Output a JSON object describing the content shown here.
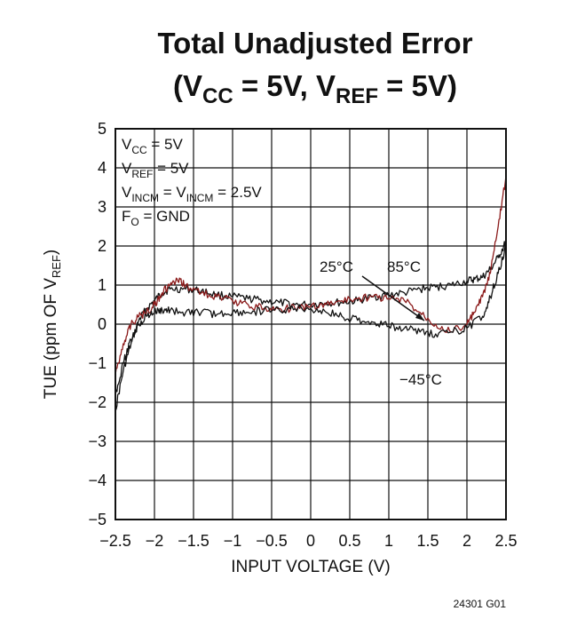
{
  "chart_data": {
    "type": "line",
    "title": "Total Unadjusted Error",
    "subtitle": {
      "p1": "(V",
      "s1": "CC",
      "p2": " = 5V, V",
      "s2": "REF",
      "p3": " = 5V)"
    },
    "xlabel": "INPUT VOLTAGE (V)",
    "ylabel": {
      "main": "TUE (ppm OF V",
      "sub": "REF",
      "end": ")"
    },
    "xlim": [
      -2.5,
      2.5
    ],
    "ylim": [
      -5,
      5
    ],
    "x_ticks": [
      "−2.5",
      "−2",
      "−1.5",
      "−1",
      "−0.5",
      "0",
      "0.5",
      "1",
      "1.5",
      "2",
      "2.5"
    ],
    "y_ticks": [
      "5",
      "4",
      "3",
      "2",
      "1",
      "0",
      "−1",
      "−2",
      "−3",
      "−4",
      "−5"
    ],
    "grid": true,
    "conditions": [
      {
        "a": "V",
        "b": "CC",
        "c": " = 5V"
      },
      {
        "a": "V",
        "b": "REF",
        "c": " = 5V"
      },
      {
        "a": "V",
        "b": "INCM",
        "c": " = V",
        "d": "INCM",
        "e": " = 2.5V"
      },
      {
        "a": "F",
        "b": "O",
        "c": " = GND"
      }
    ],
    "annotations": {
      "t25": "25°C",
      "t85": "85°C",
      "tm45": "−45°C"
    },
    "series": [
      {
        "name": "25°C",
        "color": "#111111",
        "x": [
          -2.5,
          -2.4,
          -2.3,
          -2.2,
          -2.1,
          -2.0,
          -1.9,
          -1.8,
          -1.6,
          -1.4,
          -1.2,
          -1.0,
          -0.8,
          -0.6,
          -0.4,
          -0.2,
          0.0,
          0.2,
          0.4,
          0.6,
          0.8,
          1.0,
          1.2,
          1.4,
          1.6,
          1.8,
          2.0,
          2.1,
          2.2,
          2.3,
          2.4,
          2.5
        ],
        "y": [
          -2.2,
          -1.2,
          -0.5,
          0.1,
          0.4,
          0.6,
          0.8,
          0.9,
          0.9,
          0.85,
          0.75,
          0.7,
          0.65,
          0.6,
          0.55,
          0.5,
          0.5,
          0.55,
          0.55,
          0.6,
          0.7,
          0.75,
          0.8,
          0.9,
          0.95,
          1.0,
          1.1,
          1.15,
          1.2,
          1.4,
          1.7,
          2.1
        ]
      },
      {
        "name": "85°C",
        "color": "#8b1a1a",
        "x": [
          -2.5,
          -2.4,
          -2.3,
          -2.2,
          -2.1,
          -2.0,
          -1.9,
          -1.8,
          -1.7,
          -1.6,
          -1.4,
          -1.2,
          -1.0,
          -0.8,
          -0.6,
          -0.4,
          -0.2,
          0.0,
          0.2,
          0.4,
          0.6,
          0.8,
          1.0,
          1.2,
          1.4,
          1.6,
          1.8,
          2.0,
          2.1,
          2.2,
          2.3,
          2.4,
          2.5
        ],
        "y": [
          -1.3,
          -0.5,
          0.0,
          0.2,
          0.3,
          0.5,
          0.8,
          1.0,
          1.1,
          1.0,
          0.8,
          0.7,
          0.6,
          0.5,
          0.4,
          0.4,
          0.4,
          0.45,
          0.5,
          0.6,
          0.65,
          0.7,
          0.65,
          0.6,
          0.3,
          0.0,
          -0.2,
          0.0,
          0.3,
          0.7,
          1.3,
          2.5,
          3.8
        ]
      },
      {
        "name": "−45°C",
        "color": "#111111",
        "x": [
          -2.5,
          -2.4,
          -2.3,
          -2.2,
          -2.1,
          -2.0,
          -1.9,
          -1.8,
          -1.6,
          -1.4,
          -1.2,
          -1.0,
          -0.8,
          -0.6,
          -0.4,
          -0.2,
          0.0,
          0.2,
          0.4,
          0.6,
          0.8,
          1.0,
          1.2,
          1.4,
          1.6,
          1.8,
          2.0,
          2.2,
          2.3,
          2.4,
          2.5
        ],
        "y": [
          -1.8,
          -1.0,
          -0.4,
          0.0,
          0.2,
          0.3,
          0.35,
          0.35,
          0.3,
          0.3,
          0.25,
          0.3,
          0.3,
          0.35,
          0.35,
          0.4,
          0.4,
          0.3,
          0.2,
          0.1,
          0.05,
          -0.05,
          -0.1,
          -0.2,
          -0.25,
          -0.2,
          -0.1,
          0.2,
          0.7,
          1.3,
          2.0
        ]
      }
    ]
  },
  "figure_code": "24301 G01"
}
